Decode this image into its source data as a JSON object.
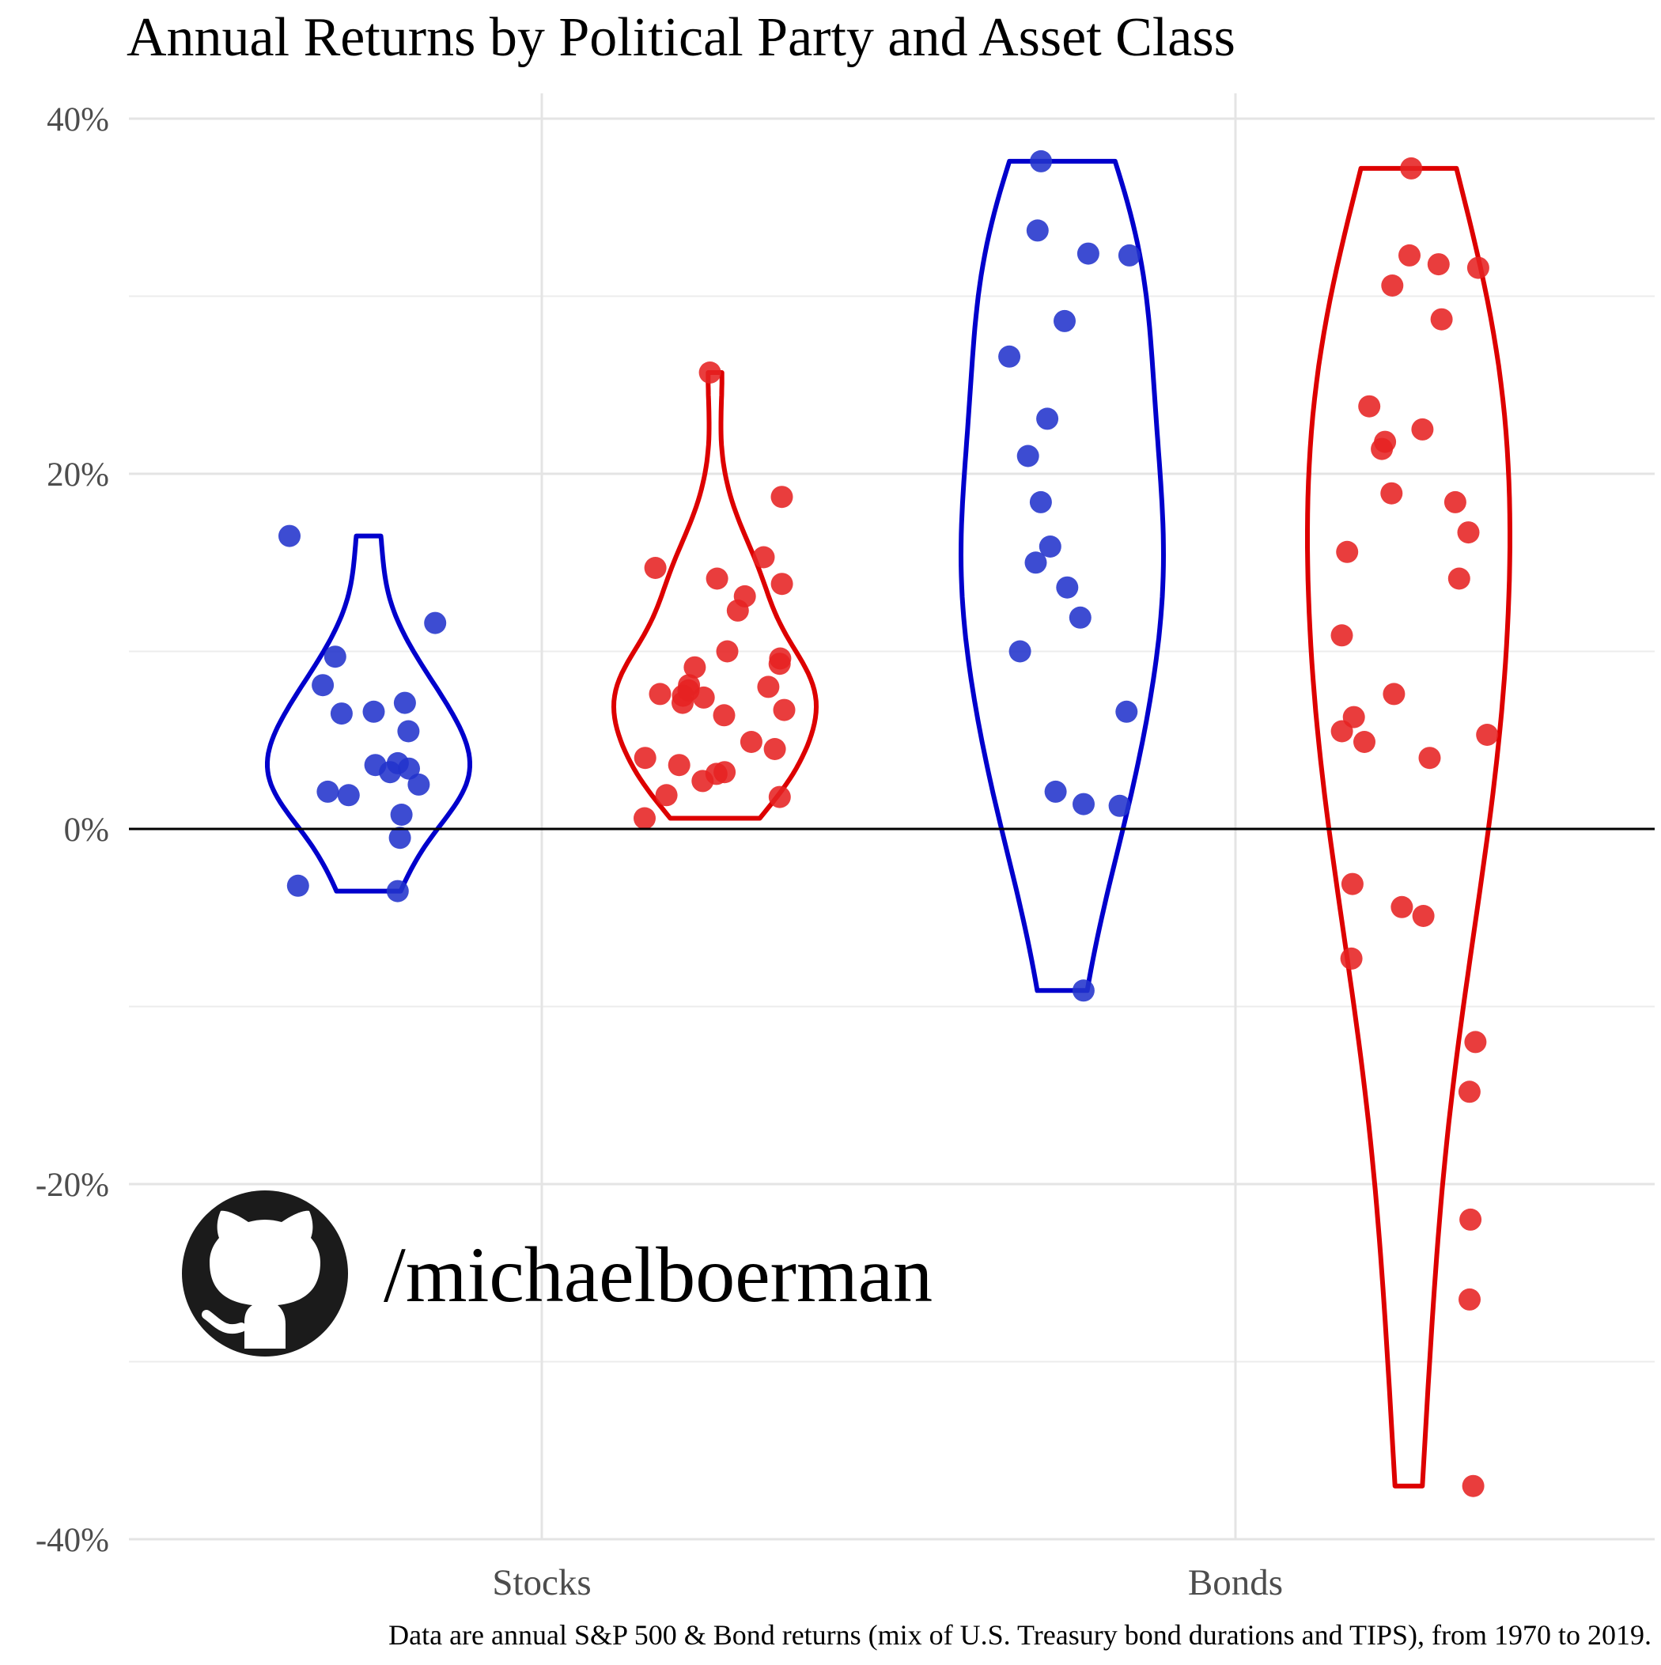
{
  "chart_data": {
    "type": "violin",
    "title": "Annual Returns by Political Party and Asset Class",
    "xlabel": "",
    "ylabel": "",
    "categories": [
      "Stocks",
      "Bonds"
    ],
    "ylim": [
      -40,
      40
    ],
    "y_ticks": [
      "40%",
      "20%",
      "0%",
      "-20%",
      "-40%"
    ],
    "y_tick_values": [
      40,
      20,
      0,
      -20,
      -40
    ],
    "reference_line": 0,
    "grid": true,
    "legend": "none",
    "colors": {
      "blue": "#0000cc",
      "red": "#dd0000",
      "blue_point": "#2233cc",
      "red_point": "#e62222"
    },
    "series": [
      {
        "color": "blue",
        "category": "Stocks",
        "values": [
          16.5,
          11.6,
          9.7,
          8.1,
          7.1,
          6.6,
          6.5,
          5.5,
          3.4,
          3.6,
          3.7,
          3.2,
          2.5,
          2.1,
          1.9,
          0.8,
          -0.5,
          -3.2,
          -3.5
        ]
      },
      {
        "color": "red",
        "category": "Stocks",
        "values": [
          25.7,
          18.7,
          15.3,
          14.7,
          14.1,
          13.8,
          13.1,
          12.3,
          10.0,
          9.6,
          9.3,
          9.1,
          8.1,
          8.0,
          7.8,
          7.6,
          7.5,
          7.4,
          7.1,
          6.7,
          6.4,
          4.9,
          4.5,
          4.0,
          3.6,
          3.2,
          3.1,
          2.7,
          1.9,
          1.8,
          0.6
        ]
      },
      {
        "color": "blue",
        "category": "Bonds",
        "values": [
          37.6,
          33.7,
          32.4,
          32.3,
          28.6,
          26.6,
          23.1,
          21.0,
          18.4,
          15.9,
          15.0,
          13.6,
          11.9,
          10.0,
          6.6,
          2.1,
          1.3,
          1.4,
          -9.1
        ]
      },
      {
        "color": "red",
        "category": "Bonds",
        "values": [
          37.2,
          32.3,
          31.8,
          31.6,
          30.6,
          28.7,
          23.8,
          22.5,
          21.8,
          21.4,
          18.9,
          18.4,
          16.7,
          15.6,
          14.1,
          10.9,
          7.6,
          6.3,
          5.5,
          5.3,
          4.9,
          4.0,
          -3.1,
          -4.4,
          -4.9,
          -7.3,
          -12.0,
          -14.8,
          -22.0,
          -26.5,
          -37.0
        ]
      }
    ]
  },
  "watermark": {
    "handle": "/michaelboerman",
    "icon": "github-icon"
  },
  "caption": "Data are annual S&P 500 & Bond returns (mix of U.S. Treasury bond durations and TIPS), from 1970 to 2019."
}
